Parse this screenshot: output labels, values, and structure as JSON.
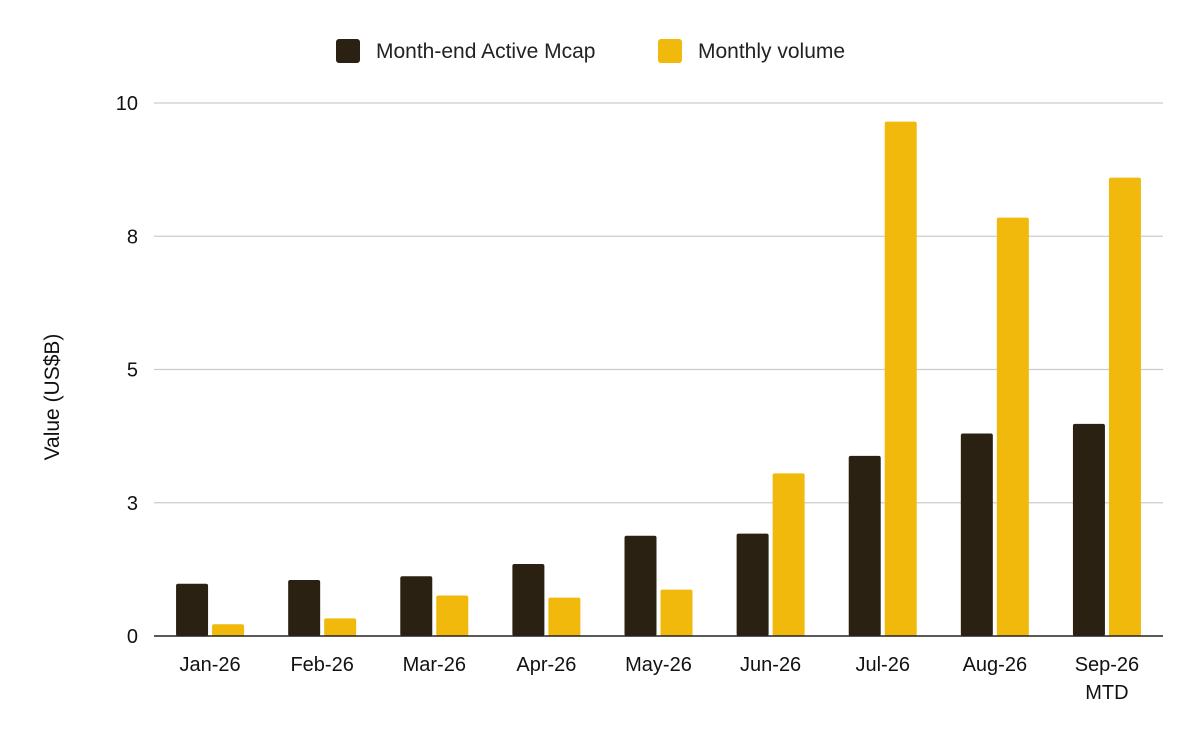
{
  "chart_data": {
    "type": "bar",
    "categories": [
      "Jan-26",
      "Feb-26",
      "Mar-26",
      "Apr-26",
      "May-26",
      "Jun-26",
      "Jul-26",
      "Aug-26",
      "Sep-26\nMTD"
    ],
    "series": [
      {
        "name": "Month-end Active Mcap",
        "color": "#2a2112",
        "values": [
          0.98,
          1.05,
          1.12,
          1.35,
          1.88,
          1.92,
          3.38,
          3.8,
          3.98
        ]
      },
      {
        "name": "Monthly volume",
        "color": "#f0b90b",
        "values": [
          0.22,
          0.33,
          0.76,
          0.72,
          0.87,
          3.05,
          9.65,
          7.85,
          8.6
        ]
      }
    ],
    "xlabel": "",
    "ylabel": "Value (US$B)",
    "ylim": [
      0,
      10
    ],
    "yticks": [
      {
        "value": 0,
        "label": "0"
      },
      {
        "value": 2.5,
        "label": "3"
      },
      {
        "value": 5,
        "label": "5"
      },
      {
        "value": 7.5,
        "label": "8"
      },
      {
        "value": 10,
        "label": "10"
      }
    ],
    "grid": true,
    "legend": "top-center"
  }
}
